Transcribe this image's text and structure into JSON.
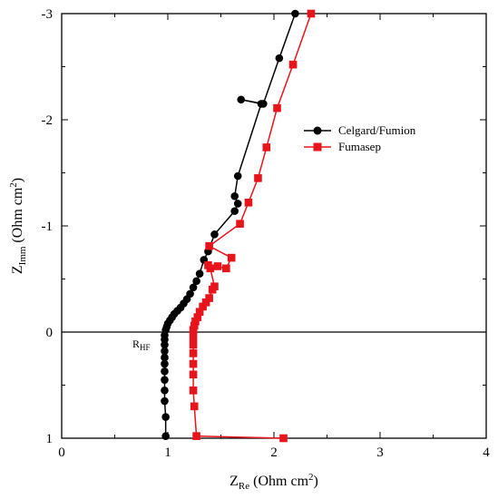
{
  "chart_data": {
    "type": "line",
    "xlabel": {
      "main": "Z",
      "sub": "Re",
      "unit": " (Ohm cm",
      "sup": "2",
      "close": ")"
    },
    "ylabel": {
      "main": "Z",
      "sub": "Imm",
      "unit": " (Ohm cm",
      "sup": "2",
      "close": ")"
    },
    "xlim": [
      0,
      4
    ],
    "ylim": [
      1,
      -3
    ],
    "y_axis_inverted": true,
    "xticks": [
      0,
      1,
      2,
      3,
      4
    ],
    "yticks": [
      1,
      0,
      -1,
      -2,
      -3
    ],
    "xtick_labels": [
      "0",
      "1",
      "2",
      "3",
      "4"
    ],
    "ytick_labels": [
      "1",
      "0",
      "-1",
      "-2",
      "-3"
    ],
    "zero_line": true,
    "grid": false,
    "legend_position": "upper-right",
    "annotation": {
      "main": "R",
      "sub": "HF",
      "x": 0.97,
      "y": 0.1
    },
    "series": [
      {
        "name": "Celgard/Fumion",
        "color": "#000000",
        "marker": "circle",
        "x": [
          0.98,
          0.98,
          0.97,
          0.97,
          0.97,
          0.97,
          0.97,
          0.97,
          0.97,
          0.97,
          0.97,
          0.97,
          0.98,
          0.99,
          1.0,
          1.02,
          1.04,
          1.06,
          1.09,
          1.12,
          1.15,
          1.18,
          1.21,
          1.24,
          1.27,
          1.3,
          1.34,
          1.38,
          1.44,
          1.63,
          1.66,
          1.63,
          1.66,
          1.88,
          1.69,
          1.9,
          2.05,
          2.2
        ],
        "y": [
          0.98,
          0.8,
          0.65,
          0.55,
          0.45,
          0.37,
          0.3,
          0.24,
          0.18,
          0.12,
          0.07,
          0.03,
          -0.02,
          -0.05,
          -0.08,
          -0.11,
          -0.14,
          -0.17,
          -0.2,
          -0.23,
          -0.27,
          -0.31,
          -0.36,
          -0.42,
          -0.48,
          -0.55,
          -0.68,
          -0.76,
          -0.92,
          -1.14,
          -1.21,
          -1.28,
          -1.47,
          -2.15,
          -2.19,
          -2.15,
          -2.58,
          -3.0
        ]
      },
      {
        "name": "Fumasep",
        "color": "#e8141b",
        "marker": "square",
        "x": [
          2.09,
          1.27,
          1.25,
          1.24,
          1.24,
          1.24,
          1.24,
          1.24,
          1.24,
          1.24,
          1.25,
          1.26,
          1.28,
          1.3,
          1.33,
          1.36,
          1.39,
          1.42,
          1.44,
          1.4,
          1.47,
          1.38,
          1.55,
          1.6,
          1.39,
          1.68,
          1.76,
          1.85,
          1.93,
          2.03,
          2.18,
          2.35
        ],
        "y": [
          1.0,
          0.98,
          0.7,
          0.55,
          0.4,
          0.3,
          0.2,
          0.12,
          0.05,
          -0.02,
          -0.06,
          -0.1,
          -0.14,
          -0.19,
          -0.24,
          -0.28,
          -0.32,
          -0.4,
          -0.43,
          -0.6,
          -0.62,
          -0.63,
          -0.6,
          -0.7,
          -0.81,
          -1.02,
          -1.22,
          -1.45,
          -1.74,
          -2.11,
          -2.52,
          -3.0
        ]
      }
    ]
  }
}
